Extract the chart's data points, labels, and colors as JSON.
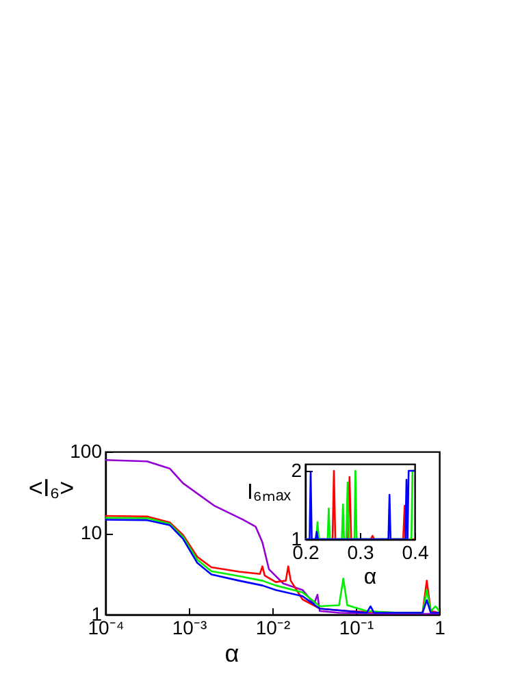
{
  "chart_data": [
    {
      "type": "line",
      "xlabel": "α",
      "ylabel": "<I₆>",
      "log": "xy",
      "xlim": [
        0.0001,
        1
      ],
      "ylim": [
        1,
        100
      ],
      "xticks": [
        {
          "value": 0.0001,
          "label": "10⁻⁴"
        },
        {
          "value": 0.001,
          "label": "10⁻³"
        },
        {
          "value": 0.01,
          "label": "10⁻²"
        },
        {
          "value": 0.1,
          "label": "10⁻¹"
        },
        1
      ],
      "yticks": [
        1,
        10,
        100
      ],
      "series": [
        {
          "color": "#9400d3",
          "x": [
            0.0001,
            0.000316,
            0.00059,
            0.00085,
            0.00204,
            0.0044,
            0.0063,
            0.0076,
            0.0091,
            0.0135,
            0.023,
            0.0316,
            0.0347,
            0.037,
            0.063,
            0.316,
            1
          ],
          "values": [
            79,
            76,
            62,
            41,
            21.5,
            14.7,
            12,
            7.7,
            3.6,
            2.4,
            2.0,
            1.35,
            1.75,
            1.1,
            1.05,
            1.02,
            1.02
          ]
        },
        {
          "color": "#ff0000",
          "x": [
            0.0001,
            0.000316,
            0.00059,
            0.00085,
            0.00126,
            0.00186,
            0.004,
            0.0071,
            0.0076,
            0.0081,
            0.011,
            0.0145,
            0.0155,
            0.0166,
            0.023,
            0.037,
            0.079,
            0.135,
            0.316,
            0.63,
            0.708,
            0.79,
            1
          ],
          "values": [
            16.2,
            16,
            13.5,
            9.5,
            5.1,
            3.8,
            3.35,
            3.15,
            3.9,
            3.0,
            2.5,
            2.6,
            3.9,
            2.6,
            1.53,
            1.18,
            1.1,
            1.08,
            1.05,
            1.05,
            2.6,
            1.1,
            1.05
          ]
        },
        {
          "color": "#00ee00",
          "x": [
            0.0001,
            0.000316,
            0.00059,
            0.00085,
            0.00126,
            0.00186,
            0.004,
            0.0076,
            0.011,
            0.023,
            0.037,
            0.063,
            0.0708,
            0.079,
            0.135,
            0.316,
            0.63,
            0.708,
            0.79,
            0.9,
            1
          ],
          "values": [
            15.4,
            15.2,
            13,
            9,
            4.7,
            3.4,
            2.95,
            2.6,
            2.27,
            1.87,
            1.26,
            1.3,
            2.76,
            1.3,
            1.1,
            1.05,
            1.05,
            2.0,
            1.1,
            1.26,
            1.1
          ]
        },
        {
          "color": "#0000ff",
          "x": [
            0.0001,
            0.000316,
            0.00059,
            0.00085,
            0.00126,
            0.00186,
            0.004,
            0.0076,
            0.011,
            0.023,
            0.037,
            0.079,
            0.135,
            0.15,
            0.165,
            0.316,
            0.63,
            0.708,
            0.79,
            1
          ],
          "values": [
            14.6,
            14.4,
            12.5,
            8.5,
            4.3,
            3.1,
            2.6,
            2.27,
            2.0,
            1.68,
            1.18,
            1.1,
            1.05,
            1.26,
            1.05,
            1.05,
            1.05,
            1.5,
            1.05,
            1.05
          ]
        }
      ]
    },
    {
      "type": "line",
      "xlabel": "α",
      "ylabel": "I₆ₘₐₓ",
      "xlim": [
        0.2,
        0.4
      ],
      "ylim": [
        1,
        2.1
      ],
      "xticks": [
        0.2,
        0.3,
        0.4
      ],
      "yticks": [
        1,
        2
      ],
      "series": [
        {
          "color": "#ff0000",
          "x": [
            0.2,
            0.25,
            0.2525,
            0.255,
            0.278,
            0.281,
            0.284,
            0.32,
            0.323,
            0.326,
            0.379,
            0.3817,
            0.384,
            0.4
          ],
          "values": [
            1,
            1,
            2,
            1,
            1,
            1.91,
            1,
            1,
            1.05,
            1,
            1,
            1.49,
            1,
            1
          ]
        },
        {
          "color": "#00ee00",
          "x": [
            0.2,
            0.22,
            0.2225,
            0.225,
            0.241,
            0.243,
            0.245,
            0.267,
            0.269,
            0.271,
            0.275,
            0.2775,
            0.28,
            0.29,
            0.2917,
            0.294,
            0.394,
            0.396,
            0.4
          ],
          "values": [
            1,
            1,
            1.25,
            1,
            1,
            1.45,
            1,
            1,
            1.51,
            1,
            1,
            1.83,
            1,
            1,
            2,
            1,
            1,
            2,
            2
          ]
        },
        {
          "color": "#0000ff",
          "x": [
            0.2,
            0.208,
            0.21,
            0.212,
            0.219,
            0.221,
            0.223,
            0.352,
            0.354,
            0.356,
            0.383,
            0.385,
            0.387,
            0.389,
            0.4
          ],
          "values": [
            1,
            1,
            1.98,
            1,
            1,
            1.11,
            1,
            1,
            1.65,
            1,
            1,
            1.87,
            1,
            2,
            2
          ]
        }
      ]
    }
  ]
}
